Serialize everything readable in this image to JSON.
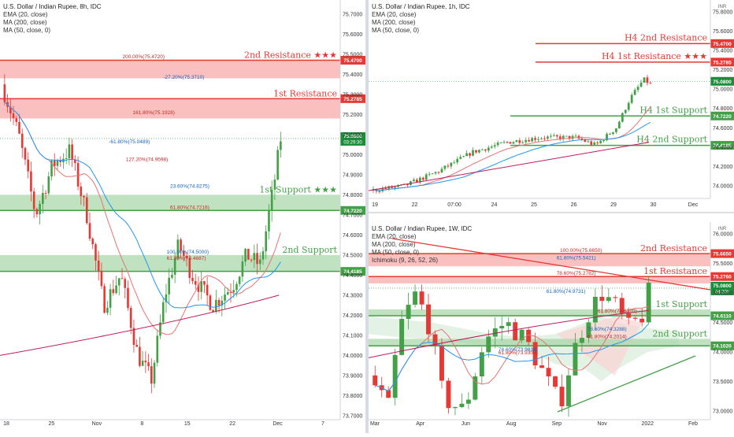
{
  "colors": {
    "resistance": "#e53935",
    "support": "#43a047",
    "ema": "#e57373",
    "ma200": "#c2185b",
    "ma50": "#2196f3",
    "up": "#43a047",
    "down": "#e53935",
    "price_tag": "#1b8c3a"
  },
  "chart_data": [
    {
      "type": "candlestick",
      "title": "U.S. Dollar / Indian Rupee, 8h, IDC",
      "legend": [
        "EMA (20, close)",
        "MA (200, close)",
        "MA (50, close, 0)"
      ],
      "x_ticks": [
        "18",
        "25",
        "Nov",
        "8",
        "15",
        "22",
        "Dec",
        "7"
      ],
      "y_ticks": [
        "73.7000",
        "73.8000",
        "73.9000",
        "74.0000",
        "74.1000",
        "74.2000",
        "74.3000",
        "74.4000",
        "74.5000",
        "74.6000",
        "74.7000",
        "74.8000",
        "74.9000",
        "75.0000",
        "75.1000",
        "75.2000",
        "75.3000",
        "75.4000",
        "75.5000",
        "75.6000",
        "75.7000"
      ],
      "ylim": [
        73.68,
        75.77
      ],
      "zones": [
        {
          "label": "2nd Resistance ★★★",
          "kind": "resistance",
          "top": 75.47,
          "bottom": 75.38,
          "line": 75.47,
          "tag": "75.4700"
        },
        {
          "label": "1st Resistance",
          "kind": "resistance",
          "top": 75.2785,
          "bottom": 75.18,
          "line": 75.2785,
          "tag": "75.2785"
        },
        {
          "label": "1st Support ★★★",
          "kind": "support",
          "top": 74.8,
          "bottom": 74.722,
          "line": 74.722,
          "tag": "74.7220"
        },
        {
          "label": "2nd Support",
          "kind": "support",
          "top": 74.5,
          "bottom": 74.4185,
          "line": 74.4185,
          "tag": "74.4185"
        }
      ],
      "fib_labels": [
        "200.00%(75.4720)",
        "-27.20%(75.3710)",
        "161.80%(75.1928)",
        "-61.80%(75.0489)",
        "127.20%(74.9598)",
        "23.60%(74.8275)",
        "61.80%(74.7216)",
        "100.00%(74.5000)",
        "61.80%(74.4687)"
      ],
      "current_price": "75.0800",
      "countdown": "03:29:30"
    },
    {
      "type": "candlestick",
      "title": "U.S. Dollar / Indian Rupee, 1h, IDC",
      "legend": [
        "EMA (20, close)",
        "MA (200, close)",
        "MA (50, close, 0)"
      ],
      "x_ticks": [
        "19",
        "22",
        "07:00",
        "24",
        "25",
        "26",
        "29",
        "30",
        "Dec"
      ],
      "y_ticks": [
        "74.0000",
        "74.2000",
        "74.4000",
        "74.6000",
        "74.8000",
        "75.0000",
        "75.2000",
        "75.4000",
        "75.6000",
        "75.8000"
      ],
      "ylim": [
        73.87,
        75.92
      ],
      "currency": "INR",
      "levels": [
        {
          "label": "H4 2nd Resistance",
          "kind": "resistance",
          "value": 75.47,
          "tag": "75.4700"
        },
        {
          "label": "H4 1st Resistance ★★★",
          "kind": "resistance",
          "value": 75.2785,
          "tag": "75.2785"
        },
        {
          "label": "H4 1st Support",
          "kind": "support",
          "value": 74.722,
          "tag": "74.7220"
        },
        {
          "label": "H4 2nd Support",
          "kind": "support",
          "value": 74.4185,
          "tag": "74.4185"
        }
      ],
      "current_price": "75.0800"
    },
    {
      "type": "candlestick",
      "title": "U.S. Dollar / Indian Rupee, 1W, IDC",
      "legend": [
        "EMA (20, close)",
        "MA (200, close)",
        "MA (50, close, 0)",
        "Ichimoku (9, 26, 52, 26)"
      ],
      "x_ticks": [
        "Mar",
        "Apr",
        "Jun",
        "Aug",
        "Sep",
        "Nov",
        "2022",
        "Feb"
      ],
      "y_ticks": [
        "73.0000",
        "73.5000",
        "74.0000",
        "74.5000",
        "75.0000",
        "75.5000",
        "76.0000"
      ],
      "ylim": [
        72.85,
        76.2
      ],
      "currency": "INR",
      "zones": [
        {
          "label": "2nd Resistance",
          "kind": "resistance",
          "top": 75.665,
          "bottom": 75.45,
          "line": 75.665,
          "tag": "75.6650"
        },
        {
          "label": "1st Resistance",
          "kind": "resistance",
          "top": 75.276,
          "bottom": 75.16,
          "line": 75.276,
          "tag": "75.2760"
        },
        {
          "label": "1st Support",
          "kind": "support",
          "top": 74.72,
          "bottom": 74.611,
          "line": 74.611,
          "tag": "74.6110"
        },
        {
          "label": "2nd Support",
          "kind": "support",
          "top": 74.22,
          "bottom": 74.102,
          "line": 74.102,
          "tag": "74.1020"
        }
      ],
      "fib_labels": [
        "100.00%(75.6650)",
        "61.80%(75.5421)",
        "78.60%(75.2782)",
        "61.80%(74.9731)",
        "61.80%(74.6370)",
        "78.60%(74.3288)",
        "61.80%(74.2014)",
        "78.60%(73.9834)",
        "61.80%(73.9303)"
      ],
      "current_price": "75.0800",
      "countdown": "4d 20h"
    }
  ]
}
